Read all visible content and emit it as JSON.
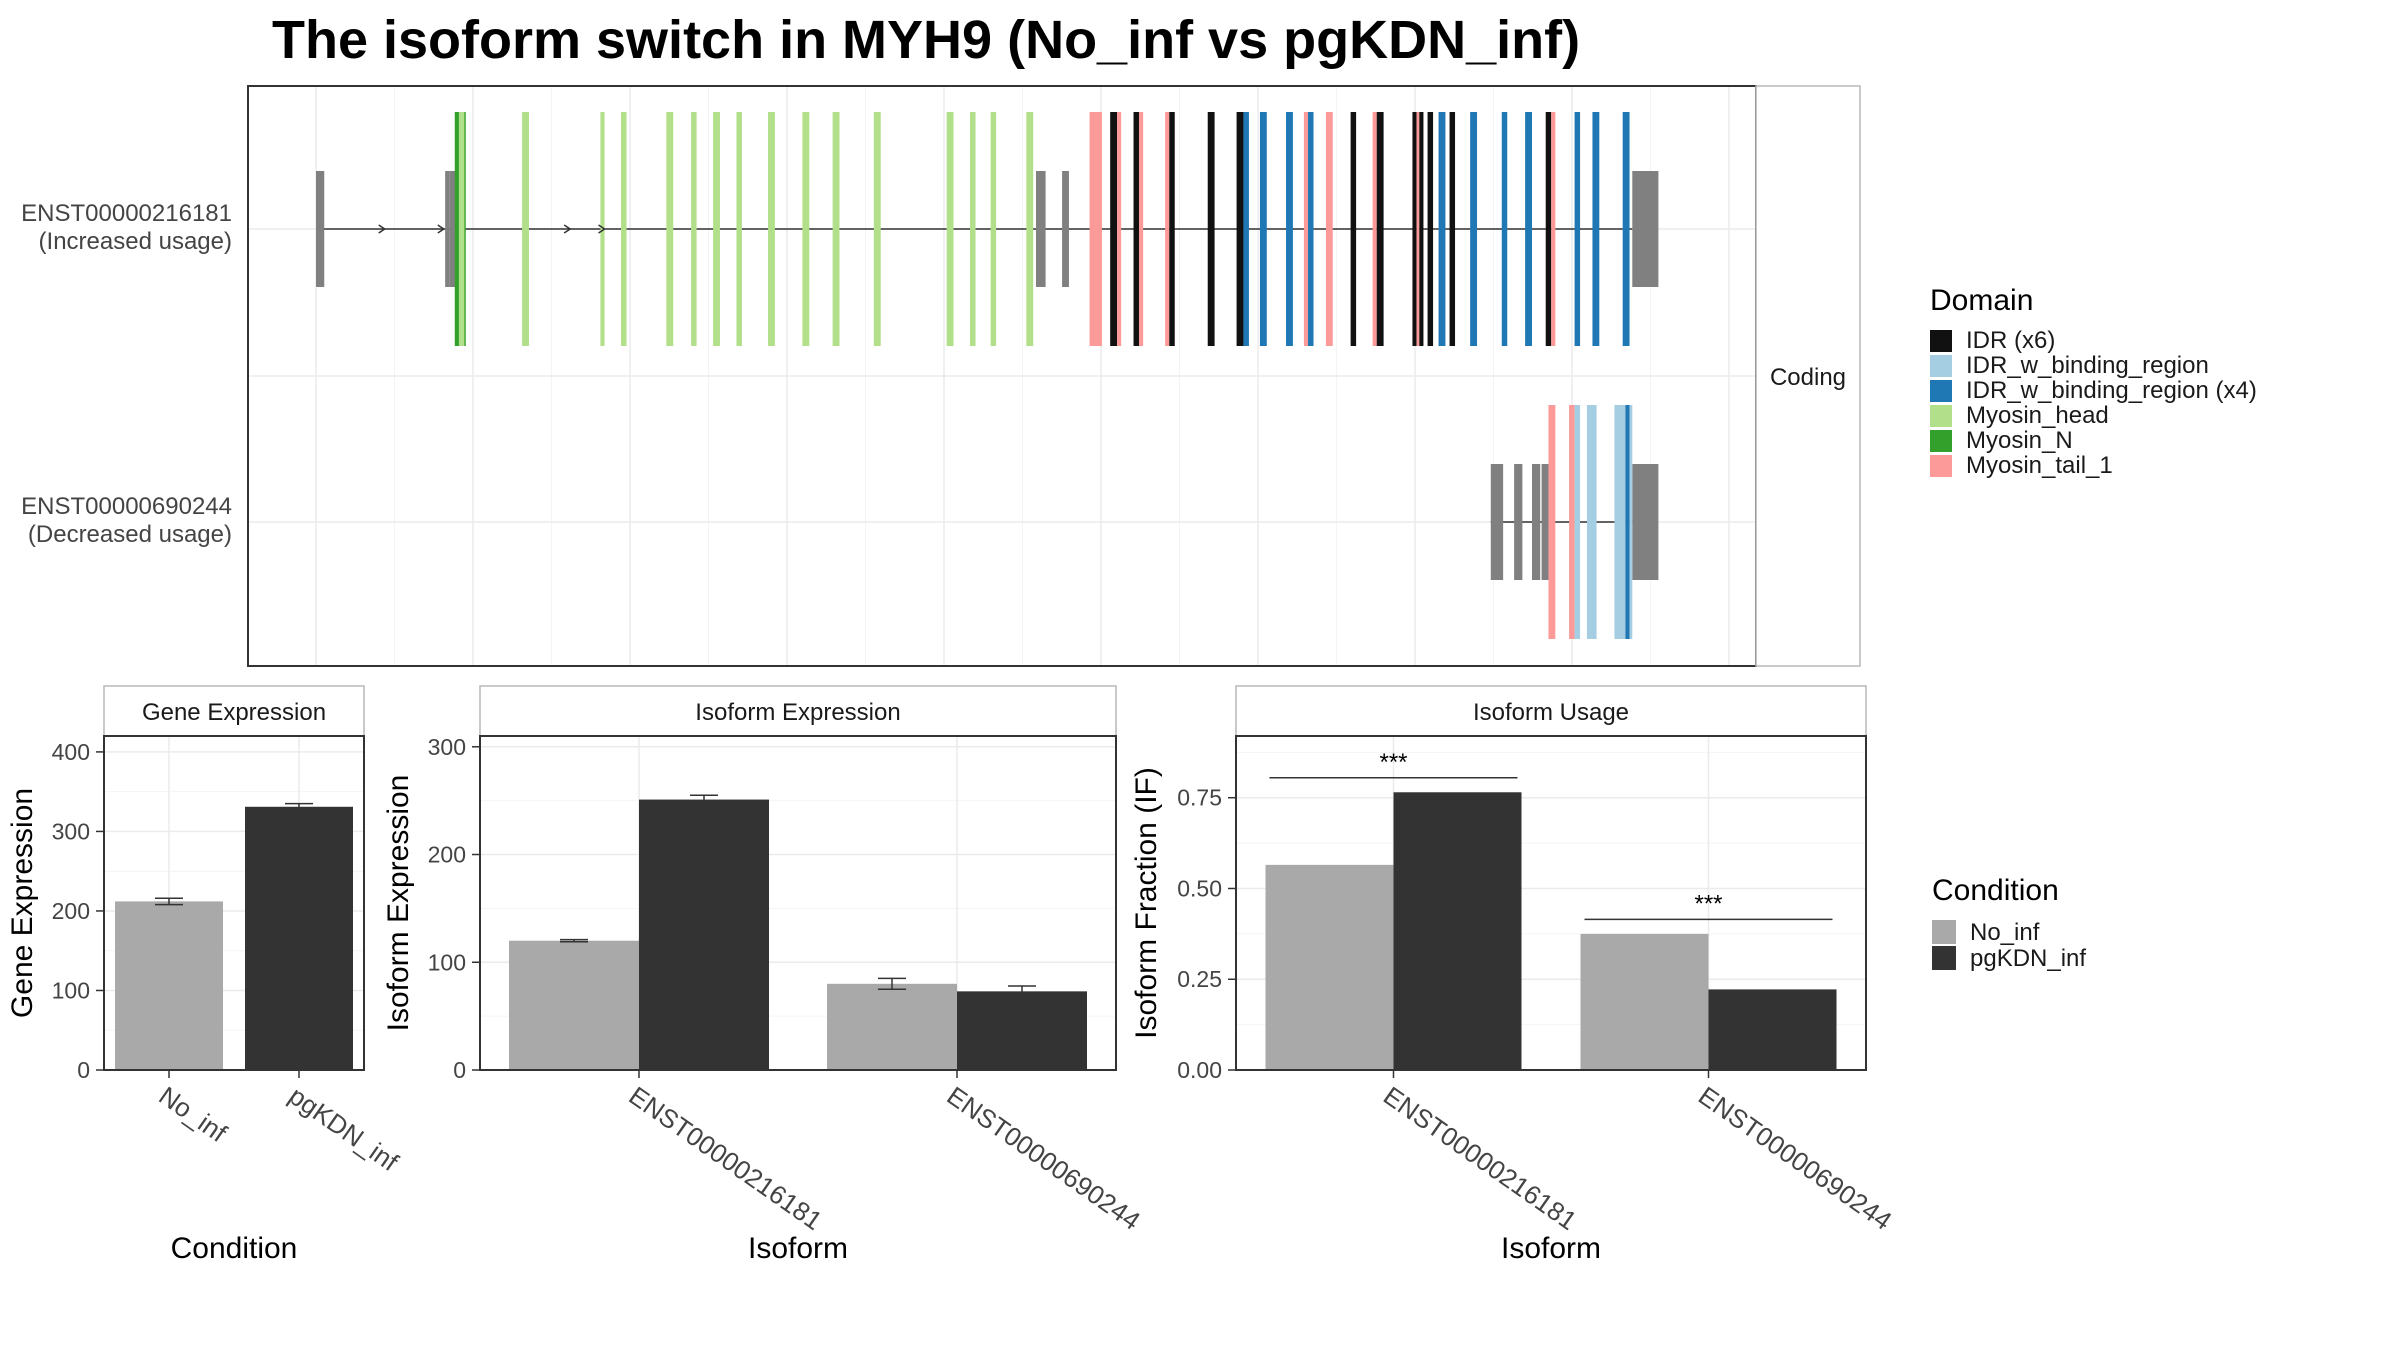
{
  "title": "The isoform switch in MYH9 (No_inf vs pgKDN_inf)",
  "colors": {
    "no_inf": "#a9a9a9",
    "pgkdn_inf": "#333333",
    "utr": "#808080",
    "IDR (x6)": "#111111",
    "IDR_w_binding_region": "#a6cee3",
    "IDR_w_binding_region (x4)": "#1f78b4",
    "Myosin_head": "#b2df8a",
    "Myosin_N": "#33a02c",
    "Myosin_tail_1": "#fb9a99"
  },
  "chart_data": [
    {
      "type": "transcript_structure",
      "title": "The isoform switch in MYH9 (No_inf vs pgKDN_inf)",
      "facet_label": "Coding",
      "isoforms": [
        {
          "id": "ENST00000216181",
          "label_line1": "ENST00000216181",
          "label_line2": "(Increased usage)",
          "line_span": [
            0.0,
            0.958
          ],
          "utr_blocks": [
            [
              0.0,
              0.006
            ],
            [
              0.094,
              0.097
            ],
            [
              0.097,
              0.106
            ],
            [
              0.524,
              0.531
            ],
            [
              0.543,
              0.548
            ],
            [
              0.958,
              0.977
            ]
          ],
          "domain_blocks": [
            {
              "domain": "Myosin_N",
              "x": [
                0.101,
                0.109
              ]
            },
            {
              "domain": "Myosin_head",
              "x": [
                0.104,
                0.108
              ]
            },
            {
              "domain": "Myosin_head",
              "x": [
                0.15,
                0.155
              ]
            },
            {
              "domain": "Myosin_head",
              "x": [
                0.207,
                0.21
              ]
            },
            {
              "domain": "Myosin_head",
              "x": [
                0.222,
                0.226
              ]
            },
            {
              "domain": "Myosin_head",
              "x": [
                0.255,
                0.26
              ]
            },
            {
              "domain": "Myosin_head",
              "x": [
                0.273,
                0.277
              ]
            },
            {
              "domain": "Myosin_head",
              "x": [
                0.289,
                0.294
              ]
            },
            {
              "domain": "Myosin_head",
              "x": [
                0.306,
                0.31
              ]
            },
            {
              "domain": "Myosin_head",
              "x": [
                0.329,
                0.334
              ]
            },
            {
              "domain": "Myosin_head",
              "x": [
                0.354,
                0.359
              ]
            },
            {
              "domain": "Myosin_head",
              "x": [
                0.376,
                0.381
              ]
            },
            {
              "domain": "Myosin_head",
              "x": [
                0.406,
                0.411
              ]
            },
            {
              "domain": "Myosin_head",
              "x": [
                0.459,
                0.464
              ]
            },
            {
              "domain": "Myosin_head",
              "x": [
                0.476,
                0.48
              ]
            },
            {
              "domain": "Myosin_head",
              "x": [
                0.491,
                0.495
              ]
            },
            {
              "domain": "Myosin_head",
              "x": [
                0.517,
                0.522
              ]
            },
            {
              "domain": "Myosin_tail_1",
              "x": [
                0.563,
                0.572
              ]
            },
            {
              "domain": "IDR (x6)",
              "x": [
                0.578,
                0.583
              ]
            },
            {
              "domain": "Myosin_tail_1",
              "x": [
                0.583,
                0.586
              ]
            },
            {
              "domain": "IDR (x6)",
              "x": [
                0.595,
                0.599
              ]
            },
            {
              "domain": "Myosin_tail_1",
              "x": [
                0.599,
                0.602
              ]
            },
            {
              "domain": "Myosin_tail_1",
              "x": [
                0.618,
                0.621
              ]
            },
            {
              "domain": "IDR (x6)",
              "x": [
                0.621,
                0.625
              ]
            },
            {
              "domain": "IDR (x6)",
              "x": [
                0.649,
                0.654
              ]
            },
            {
              "domain": "IDR (x6)",
              "x": [
                0.67,
                0.675
              ]
            },
            {
              "domain": "IDR_w_binding_region (x4)",
              "x": [
                0.675,
                0.679
              ]
            },
            {
              "domain": "IDR_w_binding_region (x4)",
              "x": [
                0.687,
                0.692
              ]
            },
            {
              "domain": "IDR_w_binding_region (x4)",
              "x": [
                0.706,
                0.711
              ]
            },
            {
              "domain": "Myosin_tail_1",
              "x": [
                0.719,
                0.722
              ]
            },
            {
              "domain": "IDR_w_binding_region (x4)",
              "x": [
                0.722,
                0.726
              ]
            },
            {
              "domain": "Myosin_tail_1",
              "x": [
                0.735,
                0.74
              ]
            },
            {
              "domain": "IDR (x6)",
              "x": [
                0.753,
                0.757
              ]
            },
            {
              "domain": "Myosin_tail_1",
              "x": [
                0.769,
                0.772
              ]
            },
            {
              "domain": "IDR (x6)",
              "x": [
                0.772,
                0.777
              ]
            },
            {
              "domain": "IDR (x6)",
              "x": [
                0.798,
                0.801
              ]
            },
            {
              "domain": "Myosin_tail_1",
              "x": [
                0.801,
                0.803
              ]
            },
            {
              "domain": "IDR (x6)",
              "x": [
                0.803,
                0.806
              ]
            },
            {
              "domain": "IDR (x6)",
              "x": [
                0.809,
                0.813
              ]
            },
            {
              "domain": "IDR_w_binding_region (x4)",
              "x": [
                0.817,
                0.822
              ]
            },
            {
              "domain": "IDR (x6)",
              "x": [
                0.825,
                0.829
              ]
            },
            {
              "domain": "IDR_w_binding_region (x4)",
              "x": [
                0.84,
                0.845
              ]
            },
            {
              "domain": "IDR_w_binding_region (x4)",
              "x": [
                0.863,
                0.867
              ]
            },
            {
              "domain": "IDR_w_binding_region (x4)",
              "x": [
                0.88,
                0.885
              ]
            },
            {
              "domain": "IDR (x6)",
              "x": [
                0.895,
                0.899
              ]
            },
            {
              "domain": "Myosin_tail_1",
              "x": [
                0.899,
                0.902
              ]
            },
            {
              "domain": "IDR_w_binding_region (x4)",
              "x": [
                0.916,
                0.92
              ]
            },
            {
              "domain": "IDR_w_binding_region (x4)",
              "x": [
                0.929,
                0.934
              ]
            },
            {
              "domain": "IDR_w_binding_region (x4)",
              "x": [
                0.951,
                0.956
              ]
            }
          ]
        },
        {
          "id": "ENST00000690244",
          "label_line1": "ENST00000690244",
          "label_line2": "(Decreased usage)",
          "line_span": [
            0.855,
            0.958
          ],
          "utr_blocks": [
            [
              0.855,
              0.864
            ],
            [
              0.872,
              0.878
            ],
            [
              0.885,
              0.891
            ],
            [
              0.892,
              0.897
            ],
            [
              0.958,
              0.977
            ]
          ],
          "domain_blocks": [
            {
              "domain": "Myosin_tail_1",
              "x": [
                0.897,
                0.902
              ]
            },
            {
              "domain": "Myosin_tail_1",
              "x": [
                0.912,
                0.916
              ]
            },
            {
              "domain": "IDR_w_binding_region",
              "x": [
                0.916,
                0.92
              ]
            },
            {
              "domain": "IDR_w_binding_region",
              "x": [
                0.925,
                0.932
              ]
            },
            {
              "domain": "IDR_w_binding_region",
              "x": [
                0.945,
                0.953
              ]
            },
            {
              "domain": "IDR_w_binding_region (x4)",
              "x": [
                0.953,
                0.956
              ]
            },
            {
              "domain": "IDR_w_binding_region",
              "x": [
                0.956,
                0.958
              ]
            }
          ]
        }
      ],
      "legend": {
        "title": "Domain",
        "entries": [
          "IDR (x6)",
          "IDR_w_binding_region",
          "IDR_w_binding_region (x4)",
          "Myosin_head",
          "Myosin_N",
          "Myosin_tail_1"
        ]
      }
    },
    {
      "type": "bar",
      "title": "Gene Expression",
      "xlabel": "Condition",
      "ylabel": "Gene Expression",
      "categories": [
        "No_inf",
        "pgKDN_inf"
      ],
      "values": [
        212,
        331
      ],
      "errors": [
        4,
        4
      ],
      "ylim": [
        0,
        420
      ],
      "yticks": [
        0,
        100,
        200,
        300,
        400
      ]
    },
    {
      "type": "bar",
      "title": "Isoform Expression",
      "xlabel": "Isoform",
      "ylabel": "Isoform Expression",
      "categories": [
        "ENST00000216181",
        "ENST00000690244"
      ],
      "series": [
        {
          "name": "No_inf",
          "values": [
            120,
            80
          ],
          "errors": [
            1,
            5
          ]
        },
        {
          "name": "pgKDN_inf",
          "values": [
            251,
            73
          ],
          "errors": [
            4,
            5
          ]
        }
      ],
      "ylim": [
        0,
        310
      ],
      "yticks": [
        0,
        100,
        200,
        300
      ]
    },
    {
      "type": "bar",
      "title": "Isoform Usage",
      "xlabel": "Isoform",
      "ylabel": "Isoform Fraction (IF)",
      "categories": [
        "ENST00000216181",
        "ENST00000690244"
      ],
      "series": [
        {
          "name": "No_inf",
          "values": [
            0.565,
            0.375
          ]
        },
        {
          "name": "pgKDN_inf",
          "values": [
            0.765,
            0.222
          ]
        }
      ],
      "ylim": [
        0,
        0.92
      ],
      "yticks": [
        "0.00",
        "0.25",
        "0.50",
        "0.75"
      ],
      "significance": [
        {
          "label": "***",
          "y": 0.805
        },
        {
          "label": "***",
          "y": 0.415
        }
      ]
    }
  ],
  "condition_legend": {
    "title": "Condition",
    "entries": [
      "No_inf",
      "pgKDN_inf"
    ]
  }
}
